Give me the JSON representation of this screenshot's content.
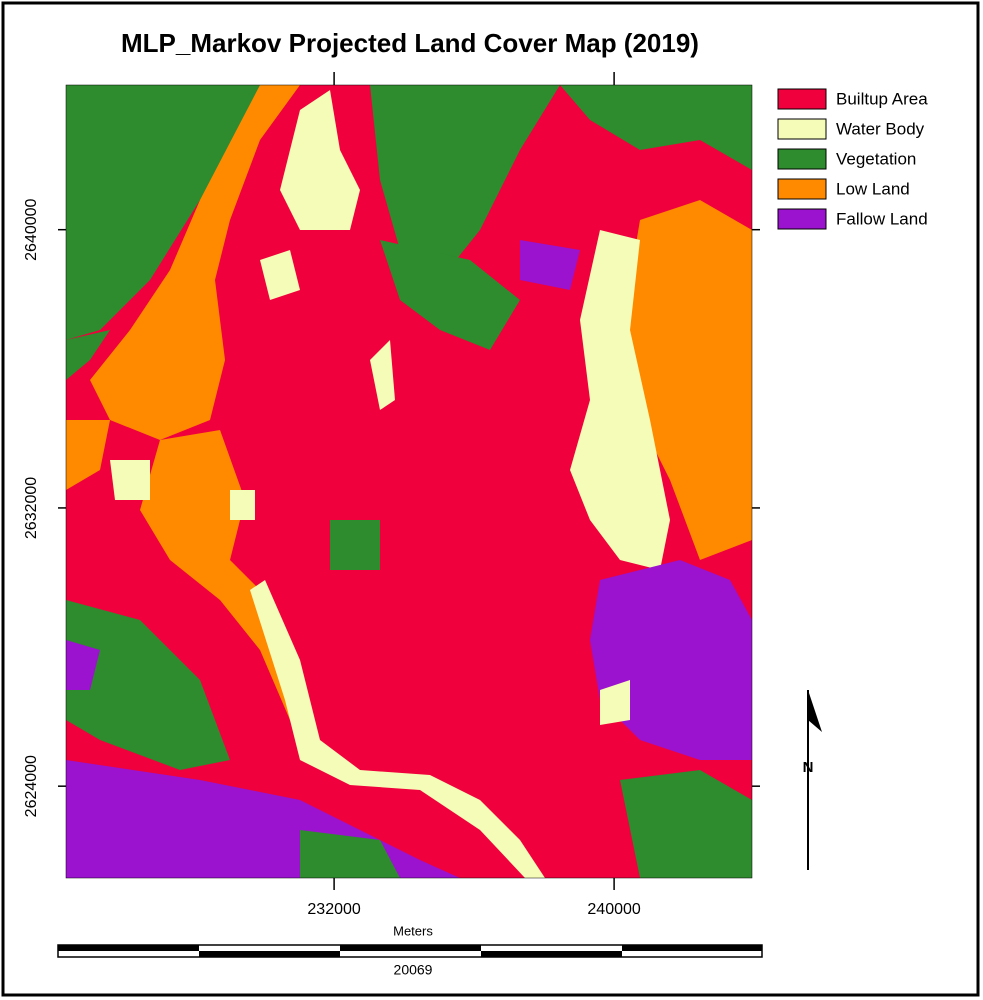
{
  "map": {
    "title": "MLP_Markov Projected Land Cover Map (2019)",
    "legend": [
      {
        "label": "Builtup Area",
        "color": "#f0003c"
      },
      {
        "label": "Water Body",
        "color": "#f5fcb8"
      },
      {
        "label": "Vegetation",
        "color": "#2e8b2e"
      },
      {
        "label": "Low Land",
        "color": "#ff8a00"
      },
      {
        "label": "Fallow Land",
        "color": "#9b12cf"
      }
    ],
    "xlim": [
      224340,
      243940
    ],
    "ylim": [
      2621360,
      2644160
    ],
    "xticks": [
      232000,
      240000
    ],
    "yticks": [
      2640000,
      2632000,
      2624000
    ],
    "x_label": "Meters",
    "scale_bar": 20069,
    "north_arrow": "N"
  }
}
